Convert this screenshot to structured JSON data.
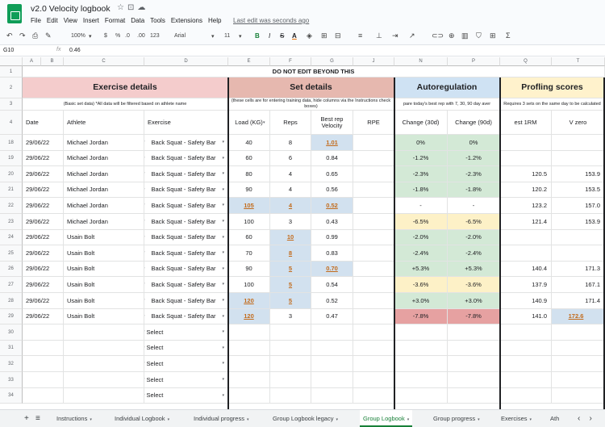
{
  "header": {
    "title": "v2.0 Velocity logbook",
    "menu": [
      "File",
      "Edit",
      "View",
      "Insert",
      "Format",
      "Data",
      "Tools",
      "Extensions",
      "Help"
    ],
    "last_edit": "Last edit was seconds ago"
  },
  "toolbar": {
    "zoom": "100%",
    "currency": "$",
    "percent": "%",
    "dec_less": ".0",
    "dec_more": ".00",
    "format": "123",
    "font": "Arial",
    "size": "11",
    "bold": "B",
    "italic": "I",
    "strike": "S",
    "textcolor": "A"
  },
  "formula_bar": {
    "cell": "G10",
    "value": "0.46"
  },
  "columns": [
    "A",
    "B",
    "C",
    "D",
    "E",
    "F",
    "G",
    "J",
    "N",
    "P",
    "Q",
    "T"
  ],
  "row_numbers": [
    "1",
    "2",
    "3",
    "4",
    "18",
    "19",
    "20",
    "21",
    "22",
    "23",
    "24",
    "25",
    "26",
    "27",
    "28",
    "29",
    "30",
    "31",
    "32",
    "33",
    "34"
  ],
  "banner": "DO NOT EDIT BEYOND THIS",
  "sections": {
    "exercise": {
      "title": "Exercise details",
      "sub": "(Basic set data) *All data will be filtered based on athlete name"
    },
    "set": {
      "title": "Set details",
      "sub": "(these cells are for entering training data, hide columns via the Instructions check boxes)"
    },
    "auto": {
      "title": "Autoregulation",
      "sub": "pare today's best rep with 7, 30, 90 day aver"
    },
    "prof": {
      "title": "Profling scores",
      "sub": "Requires 3 sets on the same day to be calculated"
    }
  },
  "col_labels": {
    "date": "Date",
    "athlete": "Athlete",
    "exercise": "Exercise",
    "load": "Load (KG)",
    "reps": "Reps",
    "best_rep": "Best rep Velocity",
    "rpe": "RPE",
    "c30": "Change (30d)",
    "c90": "Change (90d)",
    "rm": "est 1RM",
    "vzero": "V zero"
  },
  "rows": [
    {
      "date": "29/06/22",
      "athlete": "Michael Jordan",
      "exercise": "Back Squat - Safety Bar",
      "load": "40",
      "reps": "8",
      "vel": "1.01",
      "c30": "0%",
      "c90": "0%",
      "rm": "",
      "vz": "",
      "tint": "green",
      "hl": [
        "vel"
      ]
    },
    {
      "date": "29/06/22",
      "athlete": "Michael Jordan",
      "exercise": "Back Squat - Safety Bar",
      "load": "60",
      "reps": "6",
      "vel": "0.84",
      "c30": "-1.2%",
      "c90": "-1.2%",
      "rm": "",
      "vz": "",
      "tint": "green",
      "hl": []
    },
    {
      "date": "29/06/22",
      "athlete": "Michael Jordan",
      "exercise": "Back Squat - Safety Bar",
      "load": "80",
      "reps": "4",
      "vel": "0.65",
      "c30": "-2.3%",
      "c90": "-2.3%",
      "rm": "120.5",
      "vz": "153.9",
      "tint": "green",
      "hl": []
    },
    {
      "date": "29/06/22",
      "athlete": "Michael Jordan",
      "exercise": "Back Squat - Safety Bar",
      "load": "90",
      "reps": "4",
      "vel": "0.56",
      "c30": "-1.8%",
      "c90": "-1.8%",
      "rm": "120.2",
      "vz": "153.5",
      "tint": "green",
      "hl": []
    },
    {
      "date": "29/06/22",
      "athlete": "Michael Jordan",
      "exercise": "Back Squat - Safety Bar",
      "load": "105",
      "reps": "4",
      "vel": "0.52",
      "c30": "-",
      "c90": "-",
      "rm": "123.2",
      "vz": "157.0",
      "tint": "none",
      "hl": [
        "load",
        "reps",
        "vel"
      ]
    },
    {
      "date": "29/06/22",
      "athlete": "Michael Jordan",
      "exercise": "Back Squat - Safety Bar",
      "load": "100",
      "reps": "3",
      "vel": "0.43",
      "c30": "-6.5%",
      "c90": "-6.5%",
      "rm": "121.4",
      "vz": "153.9",
      "tint": "yellow",
      "hl": []
    },
    {
      "date": "29/06/22",
      "athlete": "Usain Bolt",
      "exercise": "Back Squat - Safety Bar",
      "load": "60",
      "reps": "10",
      "vel": "0.99",
      "c30": "-2.0%",
      "c90": "-2.0%",
      "rm": "",
      "vz": "",
      "tint": "green",
      "hl": [
        "reps"
      ]
    },
    {
      "date": "29/06/22",
      "athlete": "Usain Bolt",
      "exercise": "Back Squat - Safety Bar",
      "load": "70",
      "reps": "8",
      "vel": "0.83",
      "c30": "-2.4%",
      "c90": "-2.4%",
      "rm": "",
      "vz": "",
      "tint": "green",
      "hl": [
        "reps"
      ]
    },
    {
      "date": "29/06/22",
      "athlete": "Usain Bolt",
      "exercise": "Back Squat - Safety Bar",
      "load": "90",
      "reps": "5",
      "vel": "0.70",
      "c30": "+5.3%",
      "c90": "+5.3%",
      "rm": "140.4",
      "vz": "171.3",
      "tint": "green",
      "hl": [
        "reps",
        "vel"
      ]
    },
    {
      "date": "29/06/22",
      "athlete": "Usain Bolt",
      "exercise": "Back Squat - Safety Bar",
      "load": "100",
      "reps": "5",
      "vel": "0.54",
      "c30": "-3.6%",
      "c90": "-3.6%",
      "rm": "137.9",
      "vz": "167.1",
      "tint": "yellow",
      "hl": [
        "reps"
      ]
    },
    {
      "date": "29/06/22",
      "athlete": "Usain Bolt",
      "exercise": "Back Squat - Safety Bar",
      "load": "120",
      "reps": "5",
      "vel": "0.52",
      "c30": "+3.0%",
      "c90": "+3.0%",
      "rm": "140.9",
      "vz": "171.4",
      "tint": "green",
      "hl": [
        "load",
        "reps"
      ]
    },
    {
      "date": "29/06/22",
      "athlete": "Usain Bolt",
      "exercise": "Back Squat - Safety Bar",
      "load": "120",
      "reps": "3",
      "vel": "0.47",
      "c30": "-7.8%",
      "c90": "-7.8%",
      "rm": "141.0",
      "vz": "172.6",
      "tint": "red",
      "hl": [
        "load",
        "vz"
      ]
    }
  ],
  "empty_rows": [
    {
      "exercise": "Select"
    },
    {
      "exercise": "Select"
    },
    {
      "exercise": "Select"
    },
    {
      "exercise": "Select"
    },
    {
      "exercise": "Select"
    }
  ],
  "tabs": [
    "Instructions",
    "Individual Logbook",
    "Individual progress",
    "Group Logbook legacy",
    "Group Logbook",
    "Group progress",
    "Exercises",
    "Ath"
  ],
  "active_tab": "Group Logbook",
  "colors": {
    "exercise_hdr": "#f4cccc",
    "set_hdr": "#e6b8af",
    "auto_hdr": "#cfe2f3",
    "prof_hdr": "#fff2cc",
    "accent": "#188038"
  }
}
